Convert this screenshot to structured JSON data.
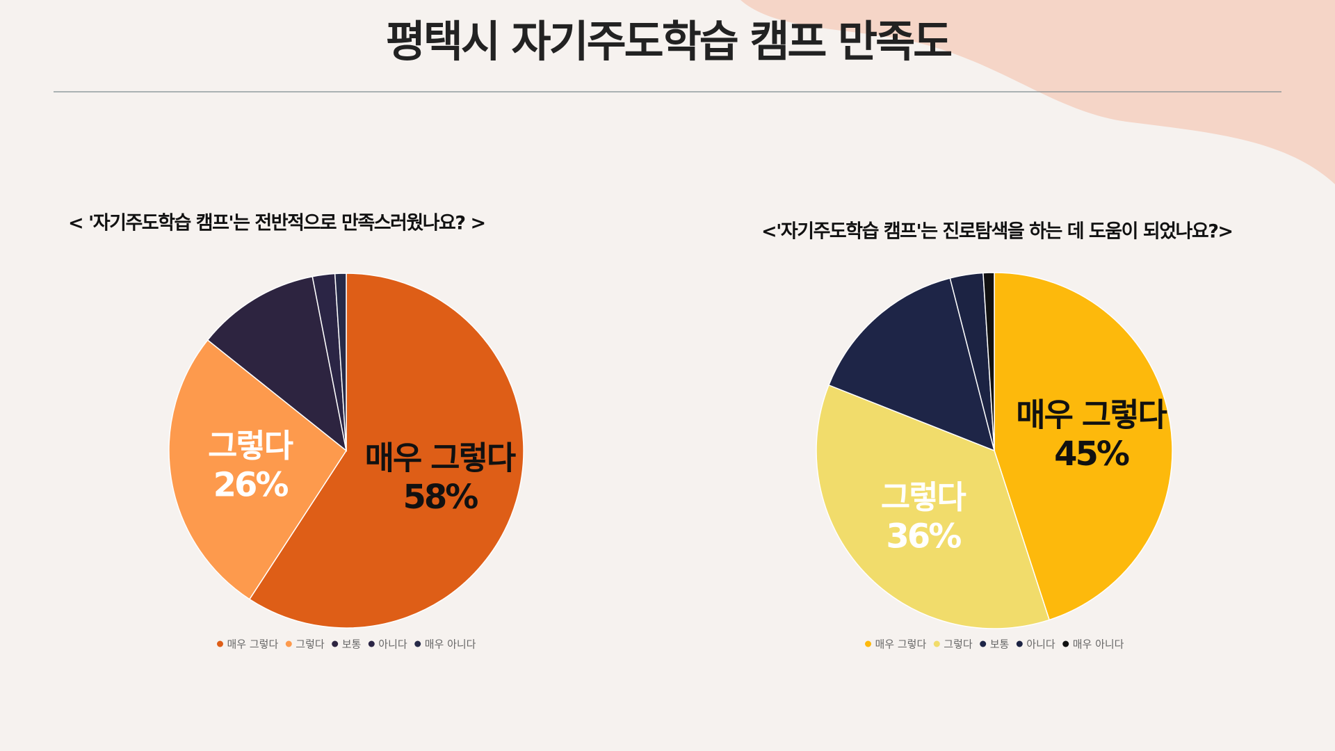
{
  "title": "평택시 자기주도학습 캠프 만족도",
  "chart_data": [
    {
      "type": "pie",
      "title": "< '자기주도학습 캠프'는 전반적으로 만족스러웠나요?  >",
      "categories": [
        "매우 그렇다",
        "그렇다",
        "보통",
        "아니다",
        "매우 아니다"
      ],
      "values": [
        58,
        26,
        11,
        2,
        1
      ],
      "value_labels": [
        "58%",
        "26%",
        null,
        null,
        null
      ],
      "colors": [
        "#de5e17",
        "#fd9a4d",
        "#2d2440",
        "#2b2545",
        "#262a48"
      ]
    },
    {
      "type": "pie",
      "title": "<'자기주도학습 캠프'는 진로탐색을 하는 데 도움이 되었나요?>",
      "categories": [
        "매우 그렇다",
        "그렇다",
        "보통",
        "아니다",
        "매우 아니다"
      ],
      "values": [
        45,
        36,
        15,
        3,
        1
      ],
      "value_labels": [
        "45%",
        "36%",
        null,
        null,
        null
      ],
      "colors": [
        "#fdb90c",
        "#f1dc6b",
        "#1e2547",
        "#1c2343",
        "#111111"
      ]
    }
  ]
}
